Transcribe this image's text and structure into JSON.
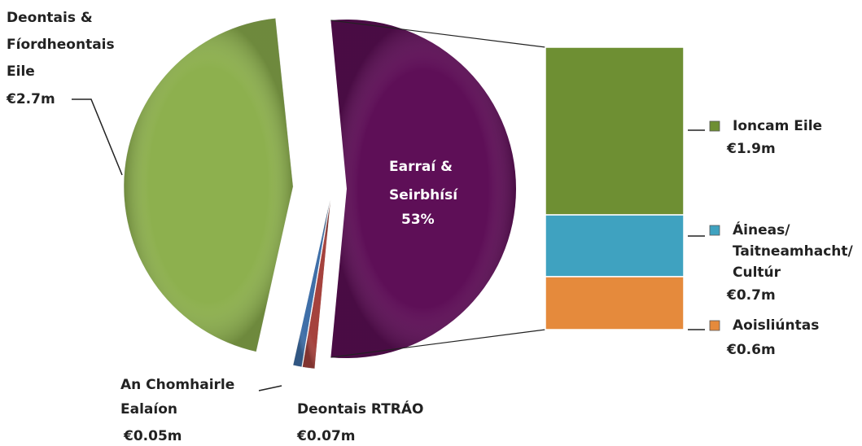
{
  "chart_data": {
    "type": "pie-of-bar",
    "slices": [
      {
        "name_lines": [
          "Deontais &",
          "Fíordheontais",
          "Eile"
        ],
        "value": 2.7,
        "value_label": "€2.7m",
        "color": "#8db04e"
      },
      {
        "name_lines": [
          "An Chomhairle",
          "Ealaíon"
        ],
        "value": 0.05,
        "value_label": "€0.05m",
        "color": "#3f6fa8"
      },
      {
        "name_lines": [
          "Deontais RTRÁO"
        ],
        "value": 0.07,
        "value_label": "€0.07m",
        "color": "#a5423d"
      }
    ],
    "combined": {
      "name_lines": [
        "Earraí &",
        "Seirbhísí"
      ],
      "value": 53,
      "value_label": "53%",
      "color": "#5e0f57"
    },
    "bar": [
      {
        "name_lines": [
          "Ioncam Eile"
        ],
        "value": 1.9,
        "value_label": "€1.9m",
        "color": "#6e8f33"
      },
      {
        "name_lines": [
          "Áineas/",
          "Taitneamhacht/",
          "Cultúr"
        ],
        "value": 0.7,
        "value_label": "€0.7m",
        "color": "#3fa2c0"
      },
      {
        "name_lines": [
          "Aoisliúntas"
        ],
        "value": 0.6,
        "value_label": "€0.6m",
        "color": "#e58a3c"
      }
    ]
  }
}
